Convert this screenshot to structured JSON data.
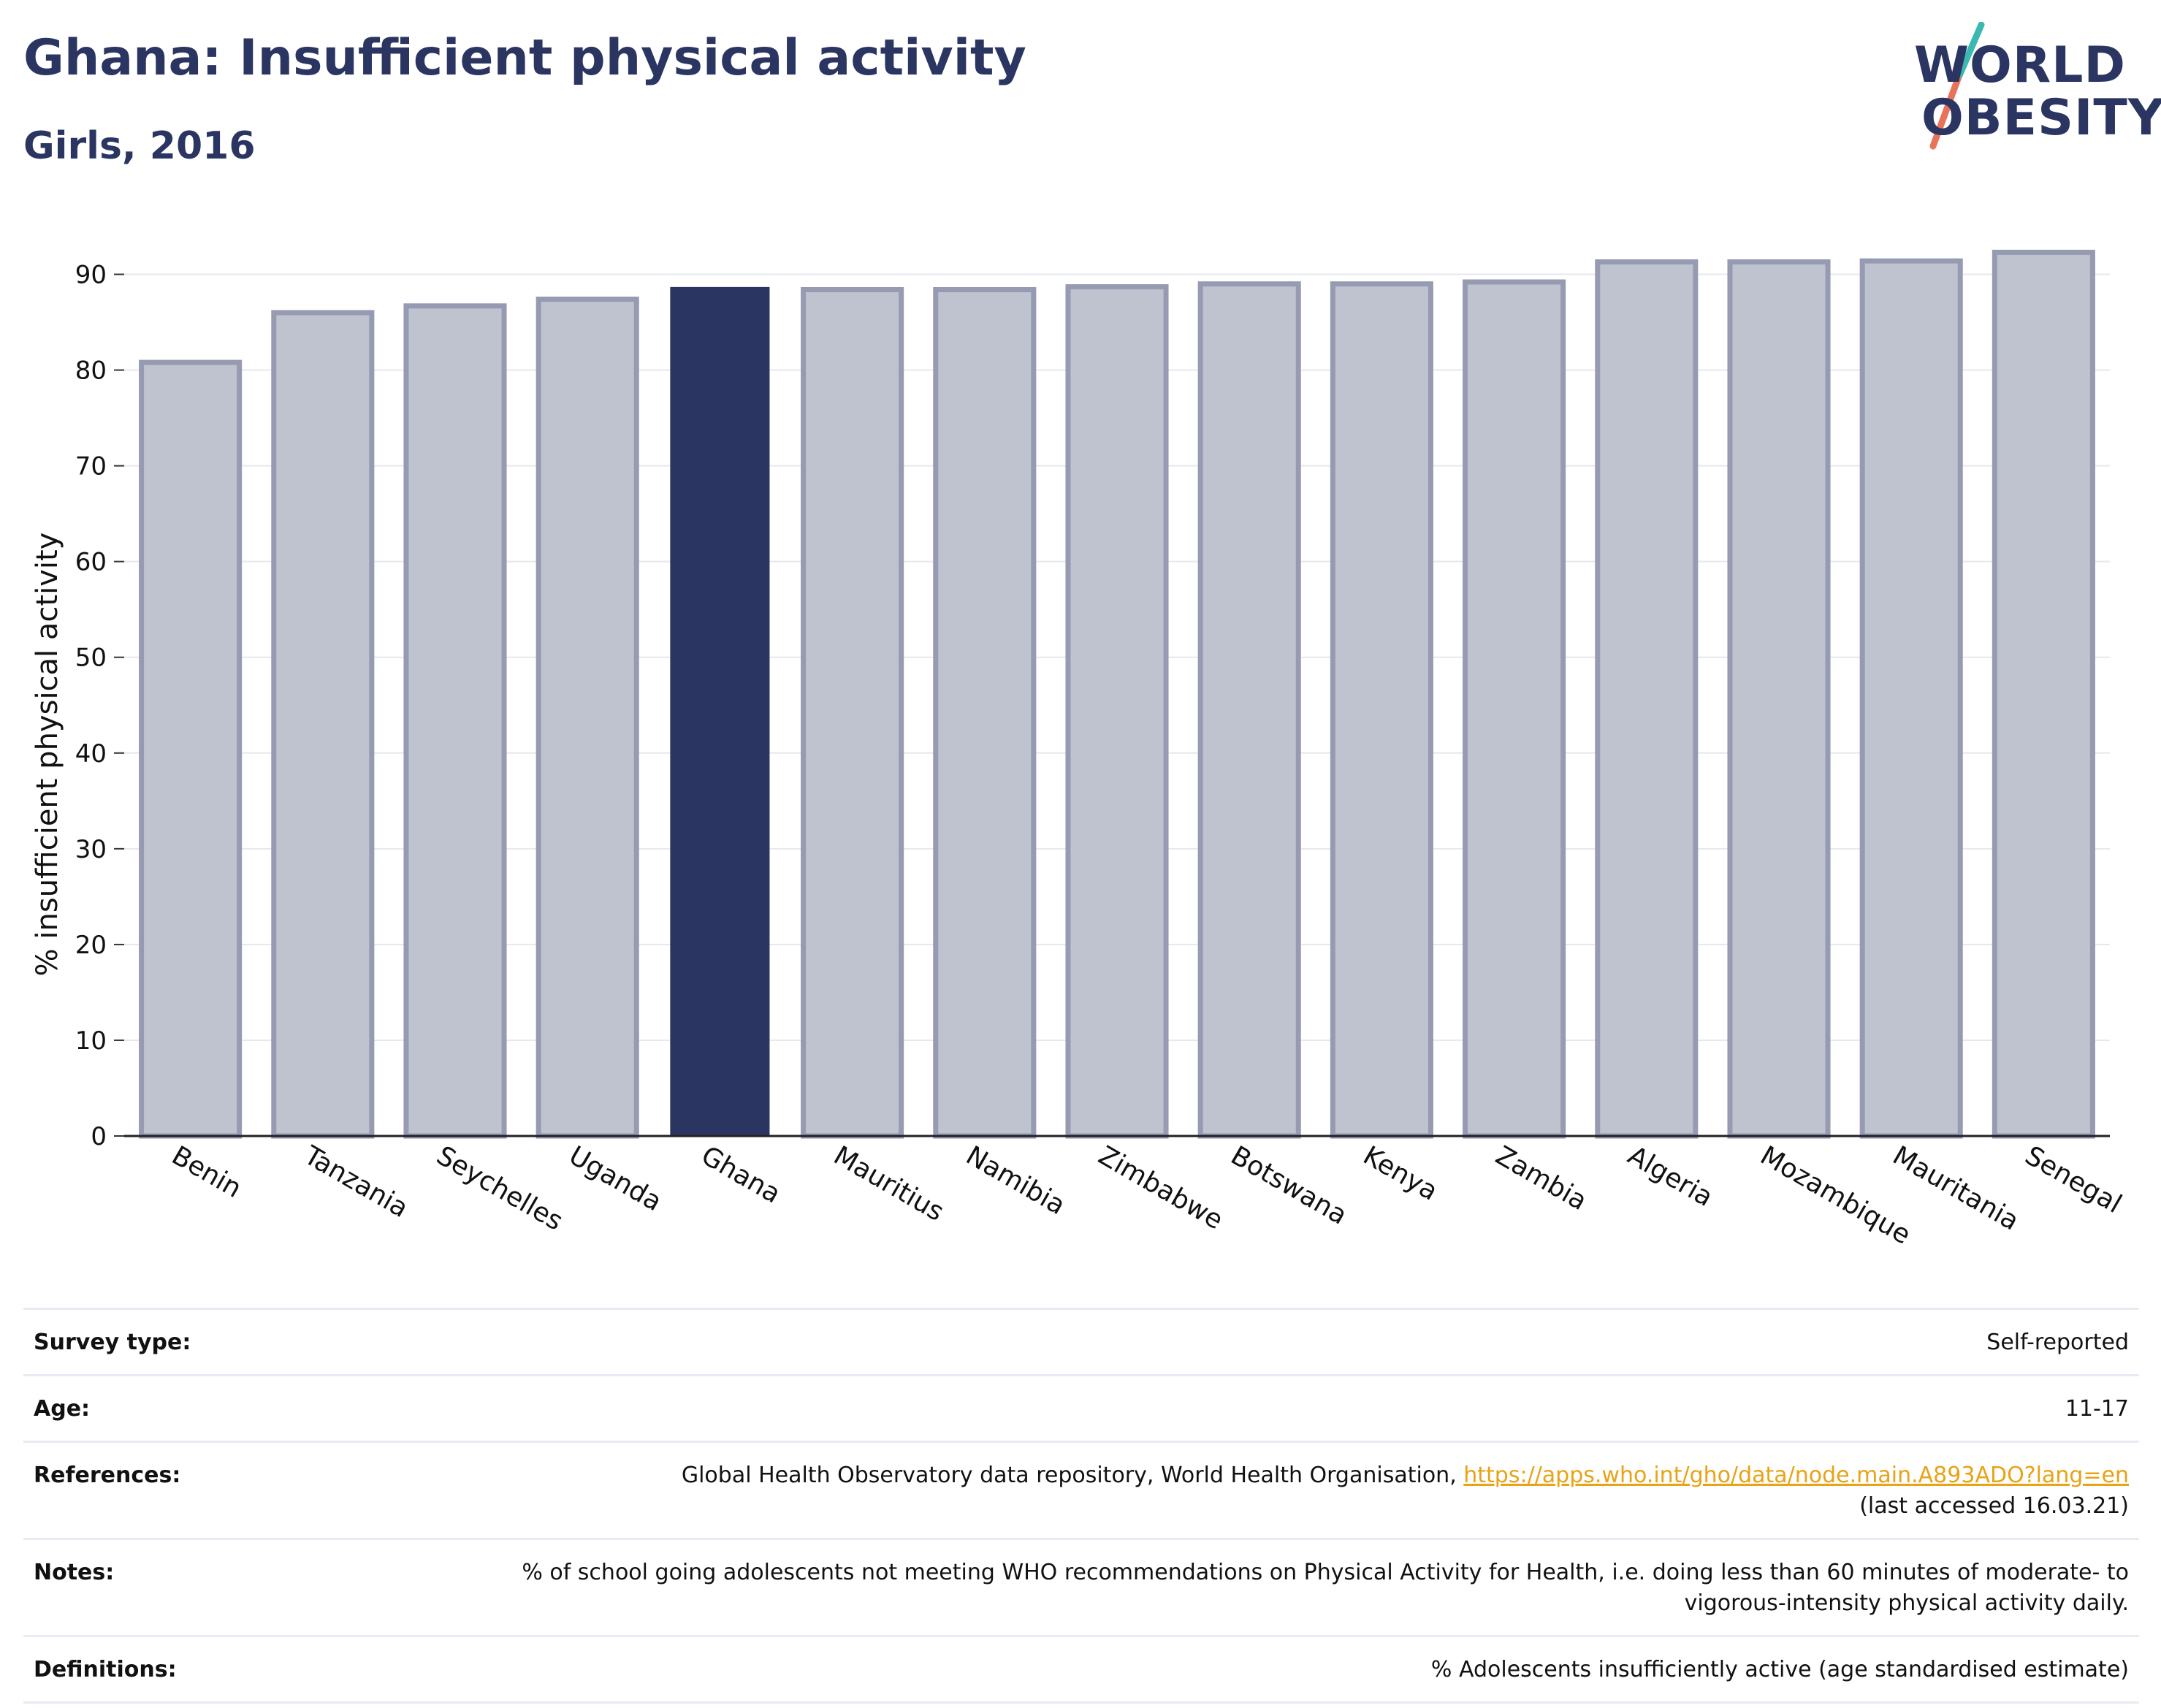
{
  "header": {
    "title": "Ghana: Insufficient physical activity",
    "subtitle": "Girls, 2016"
  },
  "logo": {
    "line1": "WORLD",
    "line2": "OBESITY",
    "colors": {
      "text": "#2b3561",
      "slash_top": "#3bb8b0",
      "slash_bottom": "#e8735a"
    }
  },
  "colors": {
    "highlight_bar": "#2b3561",
    "other_bar_fill": "#bfc2cf",
    "other_bar_stroke": "#969bb2",
    "gridline": "#e6e8ef",
    "link": "#e8a317"
  },
  "chart_data": {
    "type": "bar",
    "title": "Ghana: Insufficient physical activity",
    "subtitle": "Girls, 2016",
    "xlabel": "",
    "ylabel": "% insufficient physical activity",
    "ylim": [
      0,
      95
    ],
    "yticks": [
      0,
      10,
      20,
      30,
      40,
      50,
      60,
      70,
      80,
      90
    ],
    "grid": true,
    "highlight": "Ghana",
    "categories": [
      "Benin",
      "Tanzania",
      "Seychelles",
      "Uganda",
      "Ghana",
      "Mauritius",
      "Namibia",
      "Zimbabwe",
      "Botswana",
      "Kenya",
      "Zambia",
      "Algeria",
      "Mozambique",
      "Mauritania",
      "Senegal"
    ],
    "values": [
      80.8,
      86.0,
      86.7,
      87.4,
      88.6,
      88.4,
      88.4,
      88.7,
      89.0,
      89.0,
      89.2,
      91.3,
      91.3,
      91.4,
      92.3
    ]
  },
  "info": [
    {
      "label": "Survey type:",
      "value": "Self-reported"
    },
    {
      "label": "Age:",
      "value": "11-17"
    },
    {
      "label": "References:",
      "value": "Global Health Observatory data repository, World Health Organisation, ",
      "link": "https://apps.who.int/gho/data/node.main.A893ADO?lang=en",
      "value_after": "(last accessed 16.03.21)"
    },
    {
      "label": "Notes:",
      "value": "% of school going adolescents not meeting WHO recommendations on Physical Activity for Health, i.e. doing less than 60 minutes of moderate- to vigorous-intensity physical activity daily."
    },
    {
      "label": "Definitions:",
      "value": "% Adolescents insufficiently active (age standardised estimate)"
    }
  ]
}
